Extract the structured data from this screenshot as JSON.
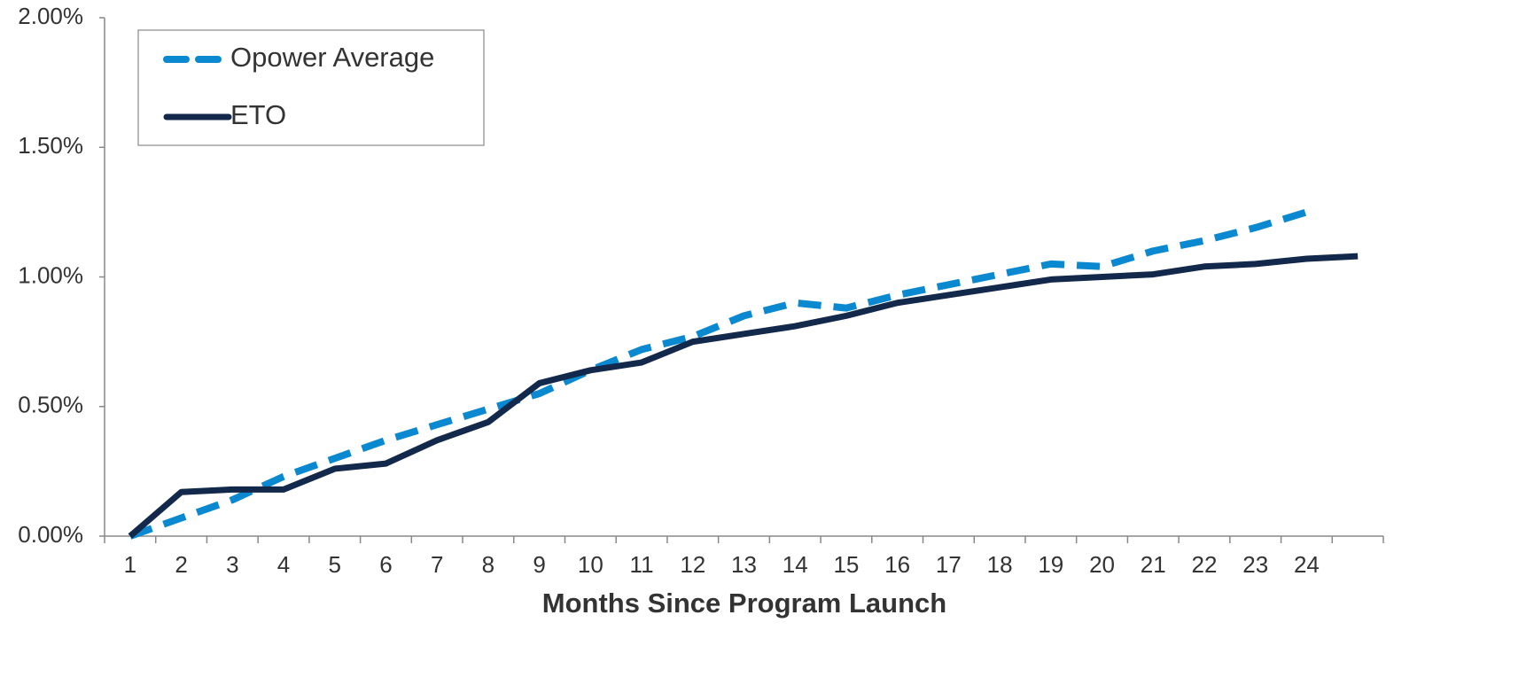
{
  "chart_data": {
    "type": "line",
    "xlabel": "Months Since Program Launch",
    "categories": [
      "1",
      "2",
      "3",
      "4",
      "5",
      "6",
      "7",
      "8",
      "9",
      "10",
      "11",
      "12",
      "13",
      "14",
      "15",
      "16",
      "17",
      "18",
      "19",
      "20",
      "21",
      "22",
      "23",
      "24",
      null
    ],
    "series": [
      {
        "name": "Opower Average",
        "color": "#0a88d0",
        "dashed": true,
        "values": [
          0.0,
          0.07,
          0.14,
          0.23,
          0.3,
          0.37,
          0.43,
          0.49,
          0.55,
          0.64,
          0.72,
          0.77,
          0.85,
          0.9,
          0.88,
          0.93,
          0.97,
          1.01,
          1.05,
          1.04,
          1.1,
          1.14,
          1.19,
          1.25,
          null
        ]
      },
      {
        "name": "ETO",
        "color": "#13294b",
        "dashed": false,
        "values": [
          0.0,
          0.17,
          0.18,
          0.18,
          0.26,
          0.28,
          0.37,
          0.44,
          0.59,
          0.64,
          0.67,
          0.75,
          0.78,
          0.81,
          0.85,
          0.9,
          0.93,
          0.96,
          0.99,
          1.0,
          1.01,
          1.04,
          1.05,
          1.07,
          1.08
        ]
      }
    ],
    "ylim": [
      0,
      2
    ],
    "yticks": [
      {
        "value": 0,
        "label": "0.00%"
      },
      {
        "value": 0.5,
        "label": "0.50%"
      },
      {
        "value": 1,
        "label": "1.00%"
      },
      {
        "value": 1.5,
        "label": "1.50%"
      },
      {
        "value": 2,
        "label": "2.00%"
      }
    ],
    "grid": false,
    "legend": "upper-left"
  }
}
